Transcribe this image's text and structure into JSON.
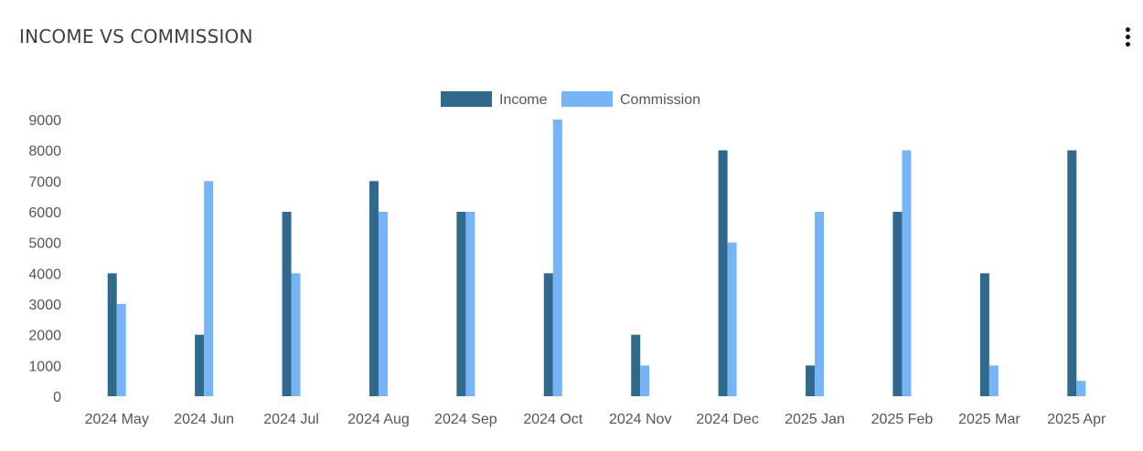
{
  "header": {
    "title": "INCOME VS COMMISSION",
    "menu_icon": "more-vertical-icon"
  },
  "colors": {
    "income": "#2f6a8c",
    "commission": "#77b4f5",
    "title": "#3b3f45",
    "axis_text": "#555555"
  },
  "chart_data": {
    "type": "bar",
    "categories": [
      "2024 May",
      "2024 Jun",
      "2024 Jul",
      "2024 Aug",
      "2024 Sep",
      "2024 Oct",
      "2024 Nov",
      "2024 Dec",
      "2025 Jan",
      "2025 Feb",
      "2025 Mar",
      "2025 Apr"
    ],
    "series": [
      {
        "name": "Income",
        "values": [
          4000,
          2000,
          6000,
          7000,
          6000,
          4000,
          2000,
          8000,
          1000,
          6000,
          4000,
          8000
        ]
      },
      {
        "name": "Commission",
        "values": [
          3000,
          7000,
          4000,
          6000,
          6000,
          9000,
          1000,
          5000,
          6000,
          8000,
          1000,
          500
        ]
      }
    ],
    "y_ticks": [
      "0",
      "1000",
      "2000",
      "3000",
      "4000",
      "5000",
      "6000",
      "7000",
      "8000",
      "9000"
    ],
    "ylim": [
      0,
      9000
    ],
    "grid": false,
    "legend_position": "top-center",
    "title": "",
    "xlabel": "",
    "ylabel": ""
  }
}
